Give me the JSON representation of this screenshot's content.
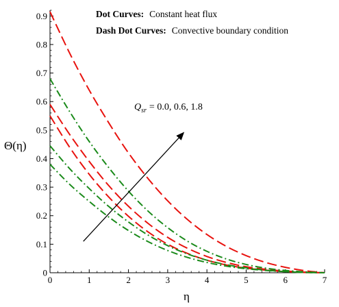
{
  "chart_data": {
    "type": "line",
    "xlabel": "η",
    "ylabel": "Θ(η)",
    "xlim": [
      0,
      7
    ],
    "ylim": [
      0,
      0.92
    ],
    "x_ticks": [
      0,
      1,
      2,
      3,
      4,
      5,
      6,
      7
    ],
    "y_ticks": [
      0,
      0.1,
      0.2,
      0.3,
      0.4,
      0.5,
      0.6,
      0.7,
      0.8,
      0.9
    ],
    "x_tick_labels": [
      "0",
      "1",
      "2",
      "3",
      "4",
      "5",
      "6",
      "7"
    ],
    "y_tick_labels": [
      "0",
      "0.1",
      "0.2",
      "0.3",
      "0.4",
      "0.5",
      "0.6",
      "0.7",
      "0.8",
      "0.9"
    ],
    "grid": false,
    "legend": {
      "line1_bold": "Dot Curves:",
      "line1_text": "Constant heat flux",
      "line2_bold": "Dash Dot Curves:",
      "line2_text": "Convective boundary condition",
      "placement": "top-right"
    },
    "annotation": {
      "symbol": "Q",
      "subscript": "sr",
      "text": "= 0.0, 0.6, 1.8",
      "arrow_from": [
        0.85,
        0.11
      ],
      "arrow_to": [
        3.4,
        0.49
      ]
    },
    "x": [
      0,
      0.5,
      1,
      1.5,
      2,
      2.5,
      3,
      3.5,
      4,
      4.5,
      5,
      5.5,
      6,
      6.5,
      7
    ],
    "series": [
      {
        "style": "dash",
        "color": "#e8120e",
        "values": [
          0.55,
          0.44,
          0.345,
          0.265,
          0.198,
          0.143,
          0.1,
          0.068,
          0.044,
          0.027,
          0.016,
          0.009,
          0.004,
          0.001,
          0.0
        ]
      },
      {
        "style": "dash",
        "color": "#e8120e",
        "values": [
          0.59,
          0.485,
          0.39,
          0.305,
          0.233,
          0.173,
          0.124,
          0.086,
          0.057,
          0.036,
          0.021,
          0.012,
          0.006,
          0.002,
          0.0
        ]
      },
      {
        "style": "dash",
        "color": "#e8120e",
        "values": [
          0.915,
          0.77,
          0.64,
          0.525,
          0.42,
          0.33,
          0.252,
          0.187,
          0.134,
          0.092,
          0.06,
          0.036,
          0.019,
          0.007,
          0.0
        ]
      },
      {
        "style": "dashdot",
        "color": "#1a8a1a",
        "values": [
          0.38,
          0.31,
          0.25,
          0.195,
          0.148,
          0.109,
          0.078,
          0.054,
          0.036,
          0.023,
          0.014,
          0.008,
          0.004,
          0.001,
          0.0
        ]
      },
      {
        "style": "dashdot",
        "color": "#1a8a1a",
        "values": [
          0.445,
          0.365,
          0.295,
          0.232,
          0.178,
          0.132,
          0.095,
          0.066,
          0.044,
          0.028,
          0.017,
          0.009,
          0.004,
          0.001,
          0.0
        ]
      },
      {
        "style": "dashdot",
        "color": "#1a8a1a",
        "values": [
          0.68,
          0.565,
          0.46,
          0.368,
          0.286,
          0.216,
          0.158,
          0.111,
          0.075,
          0.048,
          0.029,
          0.016,
          0.008,
          0.003,
          0.0
        ]
      }
    ]
  }
}
